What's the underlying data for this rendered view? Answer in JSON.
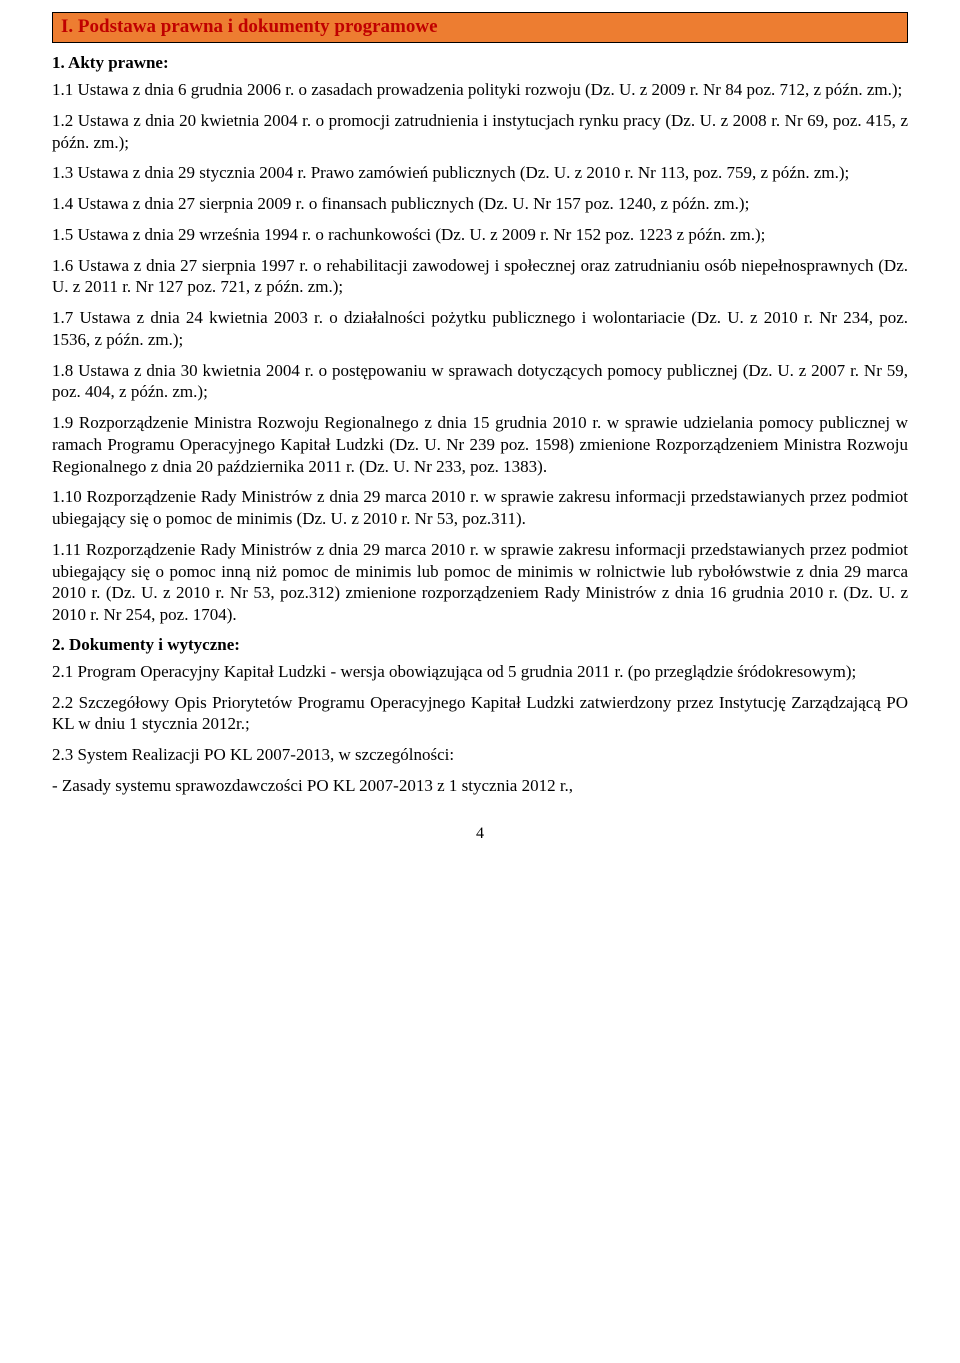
{
  "header": {
    "title": "I. Podstawa prawna i dokumenty programowe",
    "bg_color": "#ed7d31",
    "text_color": "#c00000"
  },
  "heading1": "1. Akty prawne:",
  "paras": [
    "1.1 Ustawa z dnia 6 grudnia 2006 r. o zasadach prowadzenia polityki rozwoju (Dz. U. z 2009 r. Nr 84 poz. 712, z późn. zm.);",
    "1.2 Ustawa z dnia 20 kwietnia 2004 r. o promocji zatrudnienia i instytucjach rynku pracy (Dz. U. z 2008 r. Nr 69, poz. 415, z późn. zm.);",
    "1.3 Ustawa z dnia 29 stycznia 2004 r. Prawo zamówień publicznych (Dz. U. z 2010 r. Nr 113, poz. 759, z późn. zm.);",
    "1.4 Ustawa z dnia 27 sierpnia 2009 r. o finansach publicznych (Dz. U. Nr 157 poz. 1240, z późn. zm.);",
    "1.5 Ustawa z dnia 29 września 1994 r. o rachunkowości (Dz. U. z 2009 r. Nr 152 poz. 1223 z późn. zm.);",
    "1.6 Ustawa z dnia 27 sierpnia 1997 r. o rehabilitacji zawodowej i społecznej oraz zatrudnianiu osób niepełnosprawnych (Dz. U. z 2011 r. Nr 127 poz. 721, z późn. zm.);",
    "1.7 Ustawa z dnia 24 kwietnia 2003 r. o działalności pożytku publicznego i wolontariacie (Dz. U. z 2010 r. Nr 234, poz. 1536, z późn. zm.);",
    "1.8 Ustawa z dnia 30 kwietnia 2004 r. o postępowaniu w sprawach dotyczących pomocy publicznej (Dz. U. z 2007 r. Nr 59, poz. 404, z późn. zm.);",
    "1.9 Rozporządzenie Ministra Rozwoju Regionalnego z dnia 15 grudnia 2010 r. w sprawie udzielania pomocy publicznej w ramach Programu Operacyjnego Kapitał Ludzki (Dz. U. Nr 239 poz. 1598) zmienione Rozporządzeniem Ministra Rozwoju Regionalnego z dnia 20 października 2011 r. (Dz. U. Nr 233, poz. 1383).",
    "1.10 Rozporządzenie Rady Ministrów z dnia 29 marca 2010 r. w sprawie zakresu informacji przedstawianych przez podmiot ubiegający się o pomoc de minimis (Dz. U. z 2010 r. Nr 53, poz.311).",
    "1.11 Rozporządzenie Rady Ministrów z dnia 29 marca 2010 r. w sprawie zakresu informacji przedstawianych przez podmiot ubiegający się o pomoc inną niż pomoc de minimis lub pomoc de minimis w rolnictwie lub rybołówstwie z dnia 29 marca 2010 r. (Dz. U. z 2010 r. Nr 53, poz.312) zmienione rozporządzeniem Rady Ministrów z dnia 16 grudnia 2010 r. (Dz. U. z 2010 r. Nr 254, poz. 1704)."
  ],
  "heading2": "2. Dokumenty i wytyczne:",
  "paras2": [
    "2.1 Program Operacyjny Kapitał Ludzki - wersja obowiązująca od 5 grudnia 2011 r. (po przeglądzie śródokresowym);",
    "2.2 Szczegółowy Opis Priorytetów Programu Operacyjnego Kapitał Ludzki zatwierdzony przez Instytucję Zarządzającą PO KL w dniu 1 stycznia 2012r.;",
    "2.3 System Realizacji PO KL 2007-2013, w szczególności:",
    "- Zasady systemu sprawozdawczości PO KL 2007-2013 z 1 stycznia 2012 r.,"
  ],
  "page_number": "4"
}
